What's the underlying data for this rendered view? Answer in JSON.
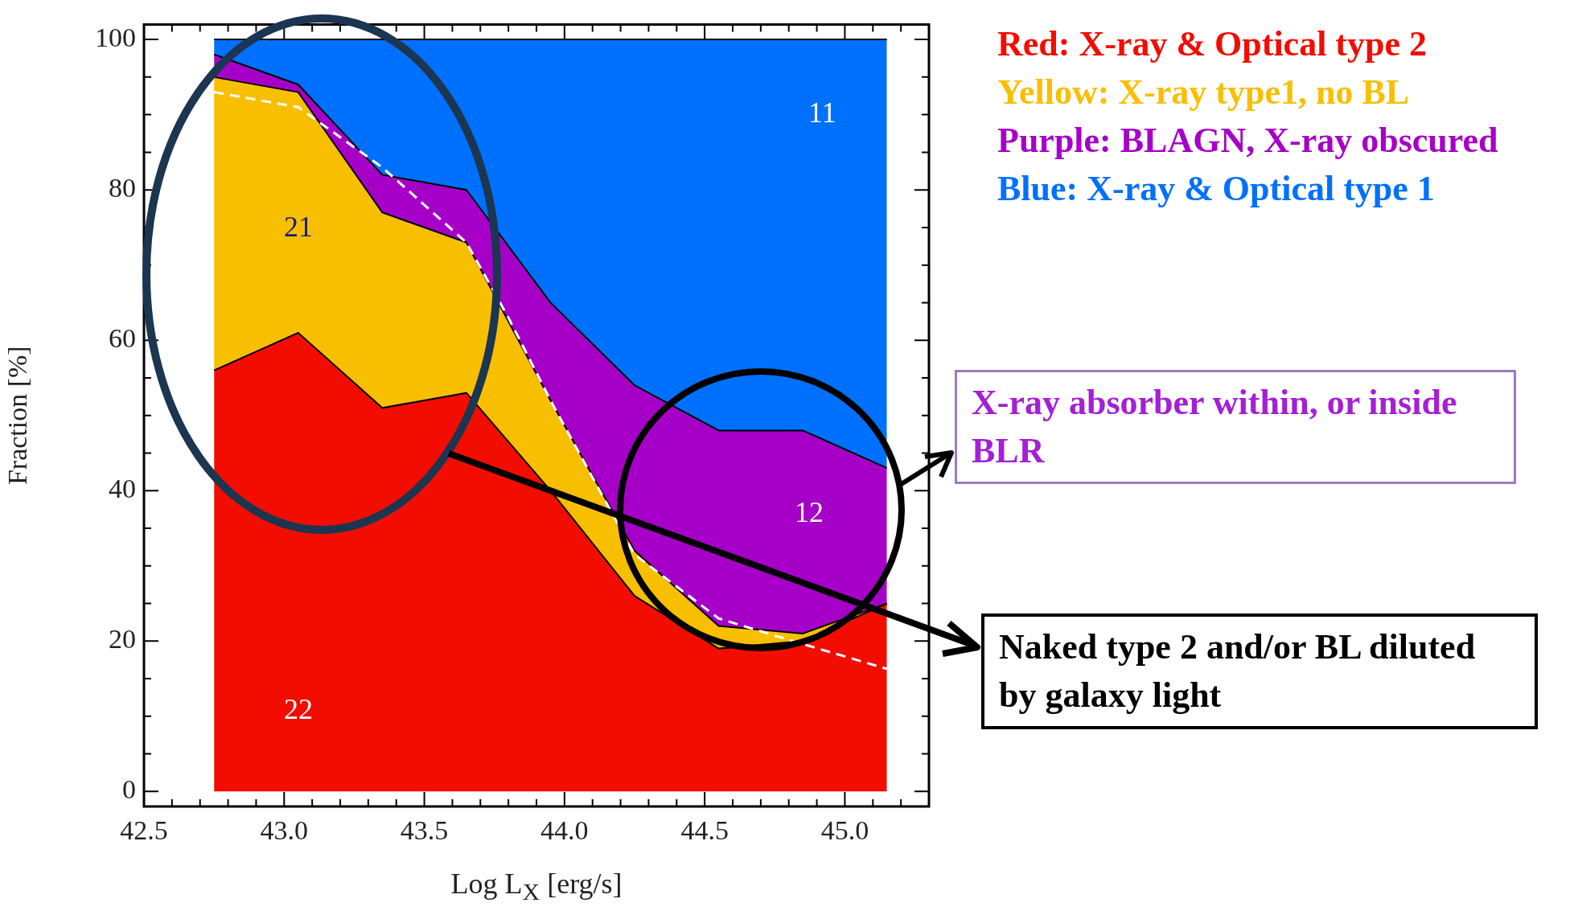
{
  "chart_data": {
    "type": "area",
    "stacked": true,
    "xlabel": "Log L$_{X}$ [erg/s]",
    "ylabel": "Fraction [%]",
    "x": [
      42.75,
      43.05,
      43.35,
      43.65,
      43.95,
      44.25,
      44.55,
      44.85,
      45.15
    ],
    "series": [
      {
        "name": "Red: X-ray & Optical type 2",
        "color": "#f20d00",
        "values": [
          56,
          61,
          51,
          53,
          40,
          26,
          19,
          20,
          25
        ]
      },
      {
        "name": "Yellow: X-ray type1, no BL",
        "color": "#f8bf00",
        "values": [
          39,
          32,
          26,
          20,
          12,
          6,
          3,
          1,
          0
        ]
      },
      {
        "name": "Purple: BLAGN, X-ray obscured",
        "color": "#a600c8",
        "values": [
          3,
          1,
          5,
          7,
          13,
          22,
          26,
          27,
          18
        ]
      },
      {
        "name": "Blue: X-ray & Optical type 1",
        "color": "#0070ff",
        "values": [
          2,
          6,
          18,
          20,
          35,
          46,
          52,
          52,
          57
        ]
      },
      {
        "type": "line",
        "color": "#ffffff",
        "line_style": "dashed",
        "marker": "none",
        "x": [
          42.75,
          43.05,
          43.35,
          43.65,
          43.8,
          43.95,
          44.25,
          44.55,
          44.85,
          45.15
        ],
        "values": [
          93,
          91,
          83,
          73,
          63,
          52,
          31.5,
          23,
          19.6,
          16.3
        ]
      }
    ],
    "xlim": [
      42.5,
      45.3
    ],
    "ylim": [
      -2,
      102
    ],
    "xticks": [
      {
        "value": 42.5,
        "label": "42.5"
      },
      {
        "value": 42.6,
        "label": null
      },
      {
        "value": 42.7,
        "label": null
      },
      {
        "value": 42.8,
        "label": null
      },
      {
        "value": 42.9,
        "label": null
      },
      {
        "value": 43.0,
        "label": "43.0"
      },
      {
        "value": 43.1,
        "label": null
      },
      {
        "value": 43.2,
        "label": null
      },
      {
        "value": 43.3,
        "label": null
      },
      {
        "value": 43.4,
        "label": null
      },
      {
        "value": 43.5,
        "label": "43.5"
      },
      {
        "value": 43.6,
        "label": null
      },
      {
        "value": 43.7,
        "label": null
      },
      {
        "value": 43.8,
        "label": null
      },
      {
        "value": 43.9,
        "label": null
      },
      {
        "value": 44.0,
        "label": "44.0"
      },
      {
        "value": 44.1,
        "label": null
      },
      {
        "value": 44.2,
        "label": null
      },
      {
        "value": 44.3,
        "label": null
      },
      {
        "value": 44.4,
        "label": null
      },
      {
        "value": 44.5,
        "label": "44.5"
      },
      {
        "value": 44.6,
        "label": null
      },
      {
        "value": 44.7,
        "label": null
      },
      {
        "value": 44.8,
        "label": null
      },
      {
        "value": 44.9,
        "label": null
      },
      {
        "value": 45.0,
        "label": "45.0"
      },
      {
        "value": 45.1,
        "label": null
      },
      {
        "value": 45.2,
        "label": null
      }
    ],
    "yticks": [
      0,
      {
        "value": 5,
        "label": null
      },
      {
        "value": 10,
        "label": null
      },
      {
        "value": 15,
        "label": null
      },
      20,
      {
        "value": 25,
        "label": null
      },
      {
        "value": 30,
        "label": null
      },
      {
        "value": 35,
        "label": null
      },
      40,
      {
        "value": 45,
        "label": null
      },
      {
        "value": 50,
        "label": null
      },
      {
        "value": 55,
        "label": null
      },
      60,
      {
        "value": 65,
        "label": null
      },
      {
        "value": 70,
        "label": null
      },
      {
        "value": 75,
        "label": null
      },
      80,
      {
        "value": 85,
        "label": null
      },
      {
        "value": 90,
        "label": null
      },
      {
        "value": 95,
        "label": null
      },
      100
    ],
    "grid": false,
    "legend": "top right",
    "annotations": [
      "11",
      "21",
      "22",
      "12",
      "X-ray absorber within, or inside BLR",
      "Naked type 2 and/or BL diluted by galaxy light"
    ]
  }
}
